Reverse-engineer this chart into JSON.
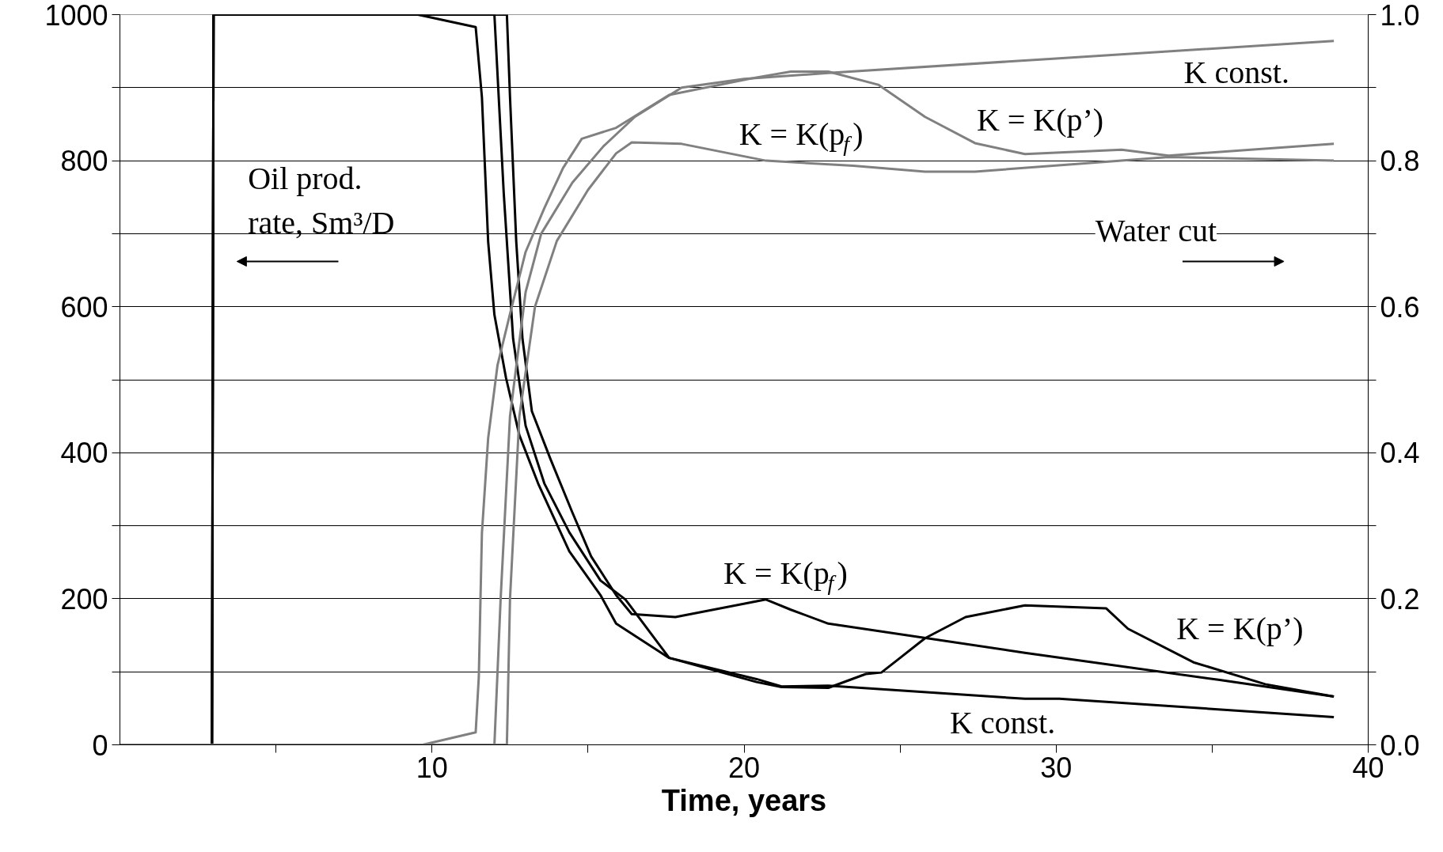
{
  "chart_data": {
    "type": "line",
    "xlabel": "Time, years",
    "xlim": [
      0,
      40
    ],
    "ylim": [
      0,
      1000
    ],
    "y2lim": [
      0,
      1
    ],
    "xticks": [
      {
        "value": 5,
        "label": null
      },
      10,
      {
        "value": 15,
        "label": null
      },
      20,
      {
        "value": 25,
        "label": null
      },
      30,
      {
        "value": 35,
        "label": null
      },
      40
    ],
    "yticks": [
      0,
      {
        "value": 100,
        "label": null
      },
      200,
      {
        "value": 300,
        "label": null
      },
      400,
      {
        "value": 500,
        "label": null
      },
      600,
      {
        "value": 700,
        "label": null
      },
      800,
      {
        "value": 900,
        "label": null
      },
      1000
    ],
    "y2ticks": [
      {
        "value": 0,
        "label": "0.0"
      },
      {
        "value": 0.1,
        "label": null
      },
      {
        "value": 0.2,
        "label": "0.2"
      },
      {
        "value": 0.3,
        "label": null
      },
      {
        "value": 0.4,
        "label": "0.4"
      },
      {
        "value": 0.5,
        "label": null
      },
      {
        "value": 0.6,
        "label": "0.6"
      },
      {
        "value": 0.7,
        "label": null
      },
      {
        "value": 0.8,
        "label": "0.8"
      },
      {
        "value": 0.9,
        "label": null
      },
      {
        "value": 1,
        "label": "1.0"
      }
    ],
    "grid": "y",
    "legend": false,
    "marker": "none",
    "line_style": "solid",
    "series": [
      {
        "name": "K = K(p’)",
        "color": "#000000",
        "x": [
          0,
          2.95,
          3.0,
          9.55,
          11.4,
          11.6,
          11.8,
          12.0,
          12.37,
          12.8,
          13.4,
          14.4,
          15.4,
          15.9,
          17.6,
          20.4,
          21.2,
          22.7,
          23.9,
          24.4,
          25.0,
          25.8,
          27.1,
          29.0,
          31.6,
          32.3,
          34.4,
          36.7,
          38.9
        ],
        "values": [
          0,
          0,
          1000,
          1000,
          983,
          887,
          689,
          589,
          503,
          424,
          358,
          265,
          205,
          166,
          119,
          86,
          79,
          78,
          97,
          99,
          119,
          146,
          175,
          191,
          187,
          159,
          113,
          83,
          66
        ]
      },
      {
        "name": "K const.",
        "color": "#000000",
        "x": [
          0,
          2.95,
          3.0,
          12.0,
          12.3,
          12.6,
          13.0,
          13.6,
          14.4,
          15.4,
          16.2,
          17.6,
          20.4,
          21.2,
          22.7,
          29.0,
          30.1,
          38.9
        ],
        "values": [
          0,
          0,
          1000,
          1000,
          755,
          556,
          437,
          358,
          291,
          225,
          199,
          119,
          90,
          80,
          81,
          63,
          63,
          38
        ]
      },
      {
        "name": "K = K(p$_{f}$)",
        "color": "#000000",
        "x": [
          0,
          2.95,
          3.0,
          12.4,
          12.5,
          12.7,
          12.9,
          13.2,
          13.8,
          14.5,
          15.1,
          15.9,
          16.4,
          17.8,
          20.7,
          21.5,
          22.7,
          29.0,
          35.2,
          38.9
        ],
        "values": [
          0,
          0,
          1000,
          1000,
          887,
          689,
          556,
          457,
          391,
          318,
          258,
          205,
          179,
          175,
          199,
          185,
          166,
          126,
          89,
          66
        ]
      },
      {
        "name": "K = K(p’)",
        "color": "#808080",
        "axis": "y2",
        "x": [
          0,
          9.7,
          11.4,
          11.5,
          11.6,
          11.8,
          12.1,
          12.5,
          13.0,
          13.6,
          14.2,
          14.8,
          15.9,
          17.6,
          20.4,
          21.5,
          22.7,
          24.3,
          25.8,
          27.4,
          29.0,
          32.1,
          33.6,
          38.9
        ],
        "values": [
          0,
          0,
          0.017,
          0.093,
          0.29,
          0.42,
          0.52,
          0.59,
          0.675,
          0.735,
          0.79,
          0.83,
          0.845,
          0.89,
          0.914,
          0.922,
          0.922,
          0.904,
          0.86,
          0.824,
          0.809,
          0.815,
          0.807,
          0.823
        ]
      },
      {
        "name": "K const.",
        "color": "#808080",
        "axis": "y2",
        "x": [
          0,
          12.0,
          12.2,
          12.5,
          13.0,
          13.5,
          14.5,
          15.5,
          16.5,
          18.0,
          20.0,
          22.7,
          30.0,
          38.9
        ],
        "values": [
          0,
          0,
          0.2,
          0.45,
          0.62,
          0.7,
          0.77,
          0.82,
          0.86,
          0.9,
          0.912,
          0.92,
          0.94,
          0.964
        ]
      },
      {
        "name": "K = K(p$_{f}$)",
        "color": "#808080",
        "axis": "y2",
        "x": [
          0,
          12.4,
          12.5,
          12.8,
          13.3,
          14.0,
          15.0,
          15.9,
          16.4,
          18.0,
          20.7,
          23.5,
          25.8,
          27.4,
          30.5,
          33.6,
          38.9
        ],
        "values": [
          0,
          0,
          0.2,
          0.45,
          0.6,
          0.69,
          0.76,
          0.81,
          0.825,
          0.823,
          0.8,
          0.793,
          0.785,
          0.785,
          0.795,
          0.805,
          0.8
        ]
      }
    ],
    "annotations": [
      "Oil prod.\nrate, Sm³/D",
      "Water cut"
    ]
  }
}
